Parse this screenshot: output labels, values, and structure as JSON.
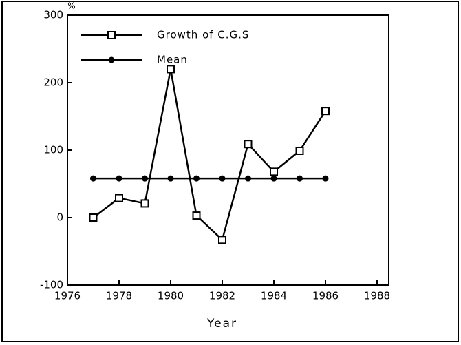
{
  "chart_data": {
    "type": "line",
    "x": [
      1977,
      1978,
      1979,
      1980,
      1981,
      1982,
      1983,
      1984,
      1985,
      1986
    ],
    "series": [
      {
        "name": "Growth of C.G.S",
        "color": "#000000",
        "marker": "square",
        "values": [
          0,
          29,
          21,
          220,
          3,
          -33,
          109,
          68,
          99,
          158
        ]
      },
      {
        "name": "Mean",
        "color": "#000000",
        "marker": "circle",
        "values": [
          58,
          58,
          58,
          58,
          58,
          58,
          58,
          58,
          58,
          58
        ]
      }
    ],
    "xlabel": "Year",
    "ylabel": "%",
    "xlim": [
      1976,
      1988
    ],
    "xticks": [
      1976,
      1978,
      1980,
      1982,
      1984,
      1986,
      1988
    ],
    "ylim": [
      -100,
      300
    ],
    "yticks": [
      -100,
      0,
      100,
      200,
      300
    ],
    "legend": "upper left",
    "grid": false
  }
}
